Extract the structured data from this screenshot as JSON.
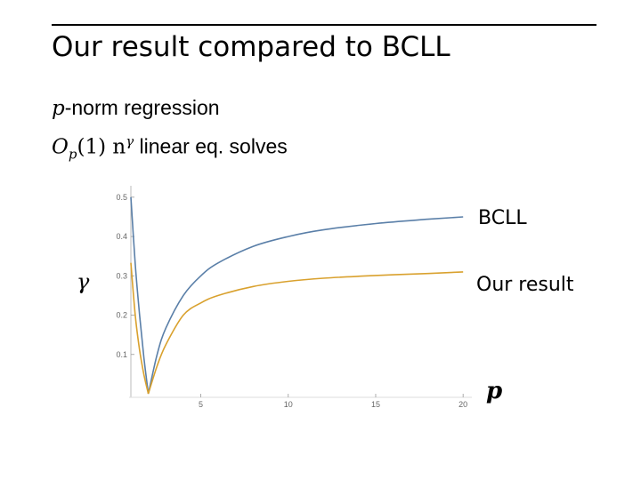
{
  "slide": {
    "title": "Our result compared to BCLL",
    "line1_math": "p",
    "line1_text": "-norm regression",
    "line2_math": "O",
    "line2_sub": "p",
    "line2_mid": "(1) n",
    "line2_sup": "γ",
    "line2_text": " linear eq. solves"
  },
  "chart_data": {
    "type": "line",
    "xlabel": "p",
    "ylabel": "γ",
    "xlim": [
      1,
      20.5
    ],
    "ylim": [
      0,
      0.52
    ],
    "xticks": [
      5,
      10,
      15,
      20
    ],
    "yticks": [
      0.1,
      0.2,
      0.3,
      0.4,
      0.5
    ],
    "grid": false,
    "legend": "right (labels beside line ends)",
    "series": [
      {
        "name": "BCLL",
        "color": "#5a7fa8",
        "x": [
          1.0,
          1.25,
          1.5,
          1.75,
          2.0,
          2.5,
          3.0,
          4.0,
          5.0,
          6.0,
          8.0,
          10.0,
          12.0,
          15.0,
          18.0,
          20.0
        ],
        "y": [
          0.5,
          0.33,
          0.2,
          0.09,
          0.0,
          0.1,
          0.167,
          0.25,
          0.3,
          0.333,
          0.375,
          0.4,
          0.417,
          0.433,
          0.444,
          0.45
        ]
      },
      {
        "name": "Our result",
        "color": "#d9a12e",
        "x": [
          1.0,
          1.25,
          1.5,
          1.75,
          2.0,
          2.5,
          3.0,
          4.0,
          5.0,
          6.0,
          8.0,
          10.0,
          12.0,
          15.0,
          18.0,
          20.0
        ],
        "y": [
          0.333,
          0.2,
          0.111,
          0.048,
          0.0,
          0.071,
          0.125,
          0.2,
          0.231,
          0.25,
          0.273,
          0.286,
          0.294,
          0.301,
          0.306,
          0.31
        ]
      }
    ]
  }
}
